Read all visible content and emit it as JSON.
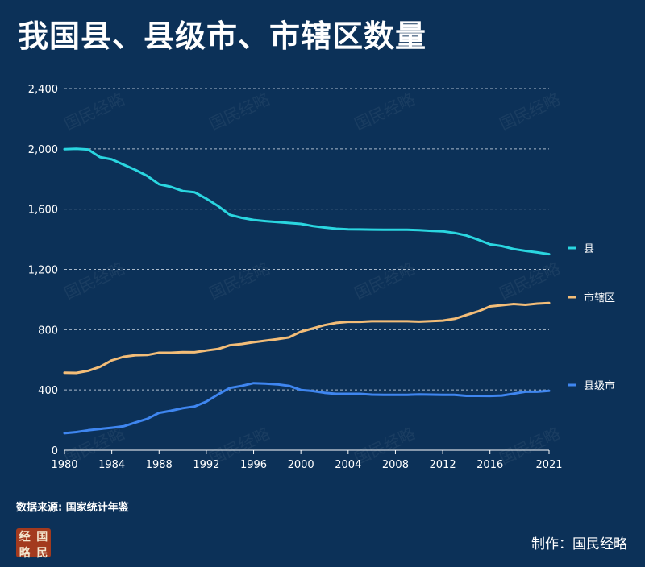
{
  "title": "我国县、县级市、市辖区数量",
  "source": "数据来源: 国家统计年鉴",
  "credit": "制作：国民经略",
  "logo": {
    "chars": [
      "经",
      "国",
      "略",
      "民"
    ]
  },
  "watermark": "国民经略",
  "colors": {
    "background": "#0c3158",
    "county": "#2ad6e0",
    "district": "#f3bd78",
    "city": "#3f86f0",
    "grid": "#c9d4e0",
    "axis": "#ffffff"
  },
  "chart_data": {
    "type": "line",
    "x": [
      1980,
      1981,
      1982,
      1983,
      1984,
      1985,
      1986,
      1987,
      1988,
      1989,
      1990,
      1991,
      1992,
      1993,
      1994,
      1995,
      1996,
      1997,
      1998,
      1999,
      2000,
      2001,
      2002,
      2003,
      2004,
      2005,
      2006,
      2007,
      2008,
      2009,
      2010,
      2011,
      2012,
      2013,
      2014,
      2015,
      2016,
      2017,
      2018,
      2019,
      2020,
      2021
    ],
    "xticks": [
      1980,
      1984,
      1988,
      1992,
      1996,
      2000,
      2004,
      2008,
      2012,
      2016,
      2021
    ],
    "ylim": [
      0,
      2400
    ],
    "yticks": [
      0,
      400,
      800,
      1200,
      1600,
      2000,
      2400
    ],
    "ytick_labels": [
      "0",
      "400",
      "800",
      "1,200",
      "1,600",
      "2,000",
      "2,400"
    ],
    "grid": true,
    "legend_placement": "right, beside line ends",
    "series": [
      {
        "name": "县",
        "color": "#2ad6e0",
        "values": [
          1998,
          2000,
          1996,
          1945,
          1930,
          1895,
          1860,
          1820,
          1765,
          1748,
          1720,
          1712,
          1670,
          1620,
          1562,
          1542,
          1528,
          1520,
          1514,
          1508,
          1502,
          1488,
          1478,
          1470,
          1466,
          1465,
          1464,
          1463,
          1463,
          1463,
          1461,
          1456,
          1453,
          1442,
          1425,
          1397,
          1366,
          1355,
          1335,
          1323,
          1313,
          1301
        ]
      },
      {
        "name": "市辖区",
        "color": "#f3bd78",
        "values": [
          514,
          513,
          527,
          554,
          596,
          620,
          630,
          632,
          647,
          647,
          651,
          650,
          662,
          672,
          697,
          705,
          717,
          727,
          737,
          749,
          787,
          808,
          830,
          845,
          852,
          852,
          856,
          856,
          856,
          856,
          853,
          857,
          860,
          872,
          897,
          921,
          954,
          962,
          970,
          965,
          973,
          977
        ]
      },
      {
        "name": "县级市",
        "color": "#3f86f0",
        "values": [
          113,
          120,
          132,
          141,
          149,
          159,
          184,
          208,
          248,
          262,
          279,
          290,
          323,
          371,
          413,
          427,
          445,
          442,
          437,
          427,
          400,
          393,
          381,
          374,
          374,
          374,
          369,
          368,
          368,
          368,
          370,
          369,
          368,
          368,
          361,
          361,
          360,
          363,
          375,
          388,
          388,
          394
        ]
      }
    ]
  }
}
